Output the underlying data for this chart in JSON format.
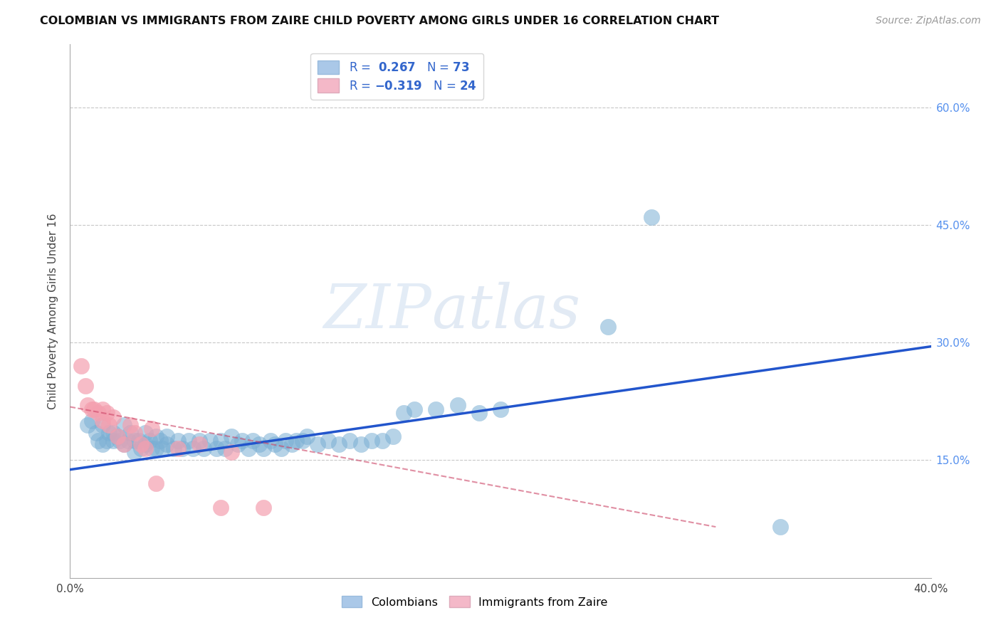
{
  "title": "COLOMBIAN VS IMMIGRANTS FROM ZAIRE CHILD POVERTY AMONG GIRLS UNDER 16 CORRELATION CHART",
  "source": "Source: ZipAtlas.com",
  "ylabel": "Child Poverty Among Girls Under 16",
  "xlim": [
    0.0,
    0.4
  ],
  "ylim": [
    0.0,
    0.68
  ],
  "xtick_positions": [
    0.0,
    0.05,
    0.1,
    0.15,
    0.2,
    0.25,
    0.3,
    0.35,
    0.4
  ],
  "ytick_positions": [
    0.15,
    0.3,
    0.45,
    0.6
  ],
  "ytick_labels": [
    "15.0%",
    "30.0%",
    "45.0%",
    "60.0%"
  ],
  "grid_color": "#c8c8c8",
  "watermark_zip": "ZIP",
  "watermark_atlas": "atlas",
  "blue_color": "#7bafd4",
  "pink_color": "#f4a0b0",
  "blue_line_color": "#2255cc",
  "pink_line_color": "#cc4466",
  "legend_blue_color": "#aac8e8",
  "legend_pink_color": "#f4b8c8",
  "blue_line_x0": 0.0,
  "blue_line_y0": 0.138,
  "blue_line_x1": 0.4,
  "blue_line_y1": 0.295,
  "pink_line_x0": 0.0,
  "pink_line_y0": 0.218,
  "pink_line_x1": 0.3,
  "pink_line_y1": 0.065,
  "blue_scatter_x": [
    0.008,
    0.01,
    0.012,
    0.013,
    0.015,
    0.015,
    0.017,
    0.018,
    0.02,
    0.02,
    0.022,
    0.023,
    0.025,
    0.025,
    0.027,
    0.028,
    0.03,
    0.03,
    0.032,
    0.033,
    0.035,
    0.035,
    0.037,
    0.038,
    0.04,
    0.04,
    0.042,
    0.043,
    0.045,
    0.045,
    0.048,
    0.05,
    0.052,
    0.055,
    0.057,
    0.06,
    0.062,
    0.065,
    0.068,
    0.07,
    0.072,
    0.075,
    0.078,
    0.08,
    0.083,
    0.085,
    0.088,
    0.09,
    0.093,
    0.095,
    0.098,
    0.1,
    0.103,
    0.105,
    0.108,
    0.11,
    0.115,
    0.12,
    0.125,
    0.13,
    0.135,
    0.14,
    0.145,
    0.15,
    0.155,
    0.16,
    0.17,
    0.18,
    0.19,
    0.2,
    0.25,
    0.27,
    0.33
  ],
  "blue_scatter_y": [
    0.195,
    0.2,
    0.185,
    0.175,
    0.195,
    0.17,
    0.175,
    0.185,
    0.175,
    0.185,
    0.18,
    0.175,
    0.195,
    0.17,
    0.175,
    0.185,
    0.175,
    0.16,
    0.175,
    0.165,
    0.185,
    0.17,
    0.175,
    0.165,
    0.18,
    0.165,
    0.175,
    0.165,
    0.18,
    0.17,
    0.165,
    0.175,
    0.165,
    0.175,
    0.165,
    0.175,
    0.165,
    0.175,
    0.165,
    0.175,
    0.165,
    0.18,
    0.17,
    0.175,
    0.165,
    0.175,
    0.17,
    0.165,
    0.175,
    0.17,
    0.165,
    0.175,
    0.17,
    0.175,
    0.175,
    0.18,
    0.17,
    0.175,
    0.17,
    0.175,
    0.17,
    0.175,
    0.175,
    0.18,
    0.21,
    0.215,
    0.215,
    0.22,
    0.21,
    0.215,
    0.32,
    0.46,
    0.065
  ],
  "pink_scatter_x": [
    0.005,
    0.007,
    0.008,
    0.01,
    0.011,
    0.013,
    0.015,
    0.015,
    0.017,
    0.018,
    0.02,
    0.022,
    0.025,
    0.028,
    0.03,
    0.033,
    0.035,
    0.038,
    0.04,
    0.05,
    0.06,
    0.07,
    0.075,
    0.09
  ],
  "pink_scatter_y": [
    0.27,
    0.245,
    0.22,
    0.215,
    0.215,
    0.21,
    0.215,
    0.2,
    0.21,
    0.195,
    0.205,
    0.18,
    0.17,
    0.195,
    0.185,
    0.17,
    0.165,
    0.19,
    0.12,
    0.165,
    0.17,
    0.09,
    0.16,
    0.09
  ]
}
